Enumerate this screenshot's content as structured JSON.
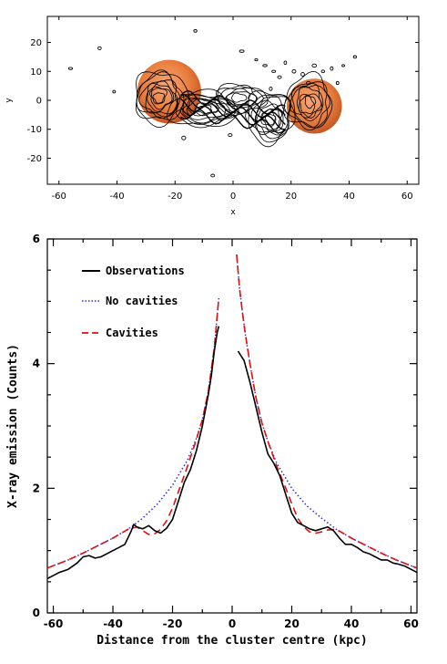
{
  "colors": {
    "observations": "#000000",
    "no_cavities": "#2b2bd6",
    "cavities": "#e01010",
    "model_overlap": "#7a2a8a",
    "cavity_fill": "#e8742e",
    "contour": "#000000"
  },
  "chart_data": [
    {
      "type": "contour",
      "xlabel": "x",
      "ylabel": "y",
      "xlim": [
        -64,
        64
      ],
      "ylim": [
        -29,
        29
      ],
      "xticks": [
        -60,
        -40,
        -20,
        0,
        20,
        40,
        60
      ],
      "yticks": [
        -20,
        -10,
        0,
        10,
        20
      ],
      "cavities": [
        {
          "name": "",
          "cx": -22,
          "cy": 3,
          "r": 11
        },
        {
          "name": "",
          "cx": 28,
          "cy": -2,
          "r": 9.5
        }
      ],
      "grid": false
    },
    {
      "type": "line",
      "xlabel": "Distance from the cluster centre (kpc)",
      "ylabel": "X-ray emission (Counts)",
      "xlim": [
        -62,
        62
      ],
      "ylim": [
        0,
        6
      ],
      "xticks": [
        -60,
        -40,
        -20,
        0,
        20,
        40,
        60
      ],
      "yticks": [
        0,
        2,
        4,
        6
      ],
      "grid": false,
      "legend_position": "top-left",
      "series": [
        {
          "name": "Observations",
          "style": "solid",
          "x": [
            -62,
            -58,
            -55,
            -52,
            -50,
            -48,
            -46,
            -44,
            -42,
            -40,
            -38,
            -36,
            -34,
            -33,
            -32,
            -30,
            -28,
            -26,
            -24,
            -22,
            -20,
            -18,
            -16,
            -14,
            -12,
            -10,
            -8,
            -7,
            -6,
            -5,
            -4.5
          ],
          "y": [
            0.55,
            0.65,
            0.7,
            0.8,
            0.9,
            0.92,
            0.88,
            0.9,
            0.95,
            1.0,
            1.05,
            1.1,
            1.3,
            1.42,
            1.38,
            1.35,
            1.4,
            1.32,
            1.28,
            1.36,
            1.5,
            1.8,
            2.1,
            2.3,
            2.6,
            3.0,
            3.5,
            3.8,
            4.2,
            4.5,
            4.6
          ]
        },
        {
          "name": "Observations",
          "style": "solid",
          "x": [
            2,
            4,
            6,
            8,
            10,
            12,
            14,
            16,
            18,
            20,
            22,
            24,
            26,
            28,
            30,
            32,
            34,
            36,
            38,
            40,
            42,
            44,
            46,
            48,
            50,
            52,
            54,
            56,
            58,
            60,
            62
          ],
          "y": [
            4.2,
            4.05,
            3.7,
            3.3,
            2.9,
            2.55,
            2.4,
            2.2,
            1.9,
            1.6,
            1.45,
            1.4,
            1.35,
            1.32,
            1.35,
            1.38,
            1.32,
            1.2,
            1.1,
            1.1,
            1.05,
            0.98,
            0.95,
            0.9,
            0.85,
            0.85,
            0.8,
            0.78,
            0.75,
            0.7,
            0.65
          ]
        },
        {
          "name": "No cavities",
          "style": "dotted",
          "x": [
            -62,
            -55,
            -50,
            -45,
            -40,
            -35,
            -30,
            -25,
            -20,
            -15,
            -12,
            -10,
            -8,
            -6,
            -4.5
          ],
          "y": [
            0.72,
            0.85,
            0.96,
            1.08,
            1.2,
            1.34,
            1.52,
            1.75,
            2.05,
            2.45,
            2.8,
            3.1,
            3.55,
            4.25,
            5.05
          ]
        },
        {
          "name": "No cavities",
          "style": "dotted",
          "x": [
            1.5,
            2.5,
            3.5,
            4.5,
            6,
            8,
            10,
            12,
            15,
            20,
            25,
            30,
            35,
            40,
            45,
            50,
            55,
            62
          ],
          "y": [
            5.75,
            5.2,
            4.8,
            4.45,
            4.0,
            3.45,
            3.05,
            2.75,
            2.4,
            2.0,
            1.72,
            1.52,
            1.34,
            1.2,
            1.08,
            0.96,
            0.85,
            0.72
          ]
        },
        {
          "name": "Cavities",
          "style": "dashed",
          "x": [
            -62,
            -55,
            -50,
            -45,
            -40,
            -35,
            -32,
            -30,
            -28,
            -26,
            -24,
            -22,
            -20,
            -18,
            -15,
            -12,
            -10,
            -8,
            -6,
            -4.5
          ],
          "y": [
            0.72,
            0.85,
            0.96,
            1.08,
            1.2,
            1.34,
            1.38,
            1.32,
            1.26,
            1.27,
            1.34,
            1.48,
            1.68,
            1.95,
            2.35,
            2.78,
            3.1,
            3.55,
            4.25,
            5.05
          ]
        },
        {
          "name": "Cavities",
          "style": "dashed",
          "x": [
            1.5,
            2.5,
            3.5,
            4.5,
            6,
            8,
            10,
            12,
            15,
            18,
            20,
            22,
            24,
            26,
            28,
            30,
            32,
            35,
            40,
            45,
            50,
            55,
            62
          ],
          "y": [
            5.75,
            5.2,
            4.8,
            4.45,
            4.0,
            3.45,
            3.05,
            2.75,
            2.35,
            2.0,
            1.75,
            1.52,
            1.38,
            1.3,
            1.28,
            1.3,
            1.33,
            1.34,
            1.2,
            1.08,
            0.96,
            0.85,
            0.72
          ]
        }
      ],
      "legend": [
        "Observations",
        "No cavities",
        "Cavities"
      ]
    }
  ]
}
